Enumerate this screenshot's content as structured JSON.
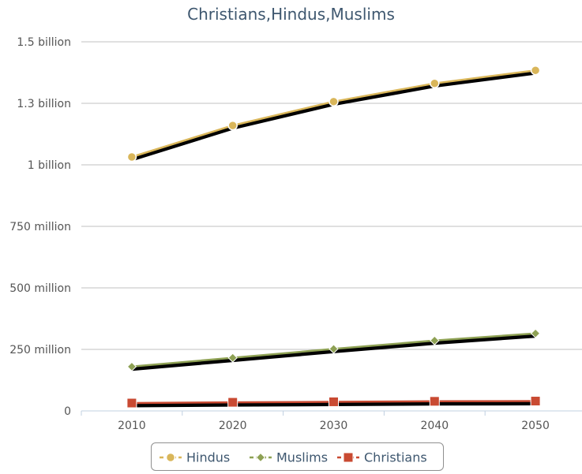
{
  "chart_data": {
    "type": "line",
    "title": "Christians,Hindus,Muslims",
    "xlabel": "",
    "ylabel": "",
    "categories": [
      "2010",
      "2020",
      "2030",
      "2040",
      "2050"
    ],
    "ylim": [
      0,
      1500000000
    ],
    "yticks": [
      0,
      250000000,
      500000000,
      750000000,
      1000000000,
      1250000000,
      1500000000
    ],
    "ytick_labels": [
      "0",
      "250 million",
      "500 million",
      "750 million",
      "1 billion",
      "1.3 billion",
      "1.5 billion"
    ],
    "grid": true,
    "legend": "bottom-center",
    "series": [
      {
        "name": "Hindus",
        "marker": "circle",
        "color": "#d9b65a",
        "values": [
          1032000000,
          1160000000,
          1257000000,
          1331000000,
          1384000000
        ]
      },
      {
        "name": "Muslims",
        "marker": "diamond",
        "color": "#8ea154",
        "values": [
          180000000,
          216000000,
          252000000,
          286000000,
          315000000
        ]
      },
      {
        "name": "Christians",
        "marker": "square",
        "color": "#c94a32",
        "values": [
          32000000,
          35000000,
          37000000,
          39000000,
          40000000
        ]
      }
    ]
  }
}
